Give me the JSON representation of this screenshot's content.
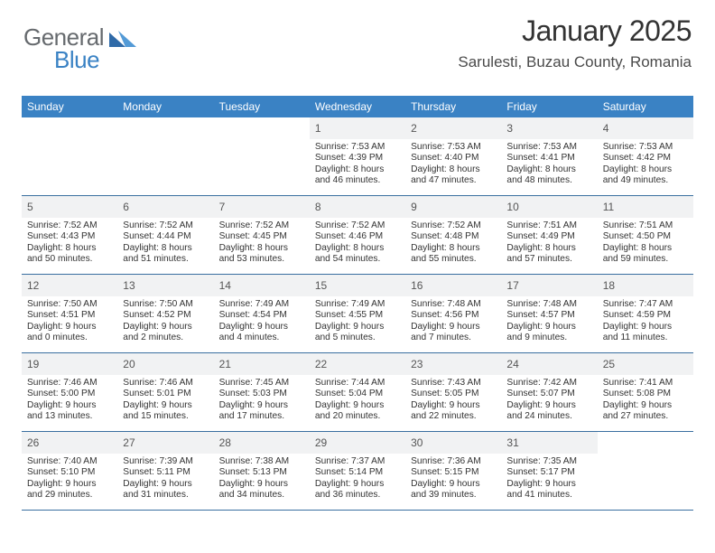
{
  "logo": {
    "text_general": "General",
    "text_blue": "Blue",
    "triangle_color": "#2f6aa8"
  },
  "header": {
    "month_title": "January 2025",
    "location": "Sarulesti, Buzau County, Romania"
  },
  "theme": {
    "header_bg": "#3a82c4",
    "header_text": "#ffffff",
    "daynum_bg": "#f1f2f3",
    "daynum_color": "#555555",
    "cell_text": "#333333",
    "row_border": "#3a6fa0"
  },
  "day_names": [
    "Sunday",
    "Monday",
    "Tuesday",
    "Wednesday",
    "Thursday",
    "Friday",
    "Saturday"
  ],
  "weeks": [
    [
      {
        "empty": true
      },
      {
        "empty": true
      },
      {
        "empty": true
      },
      {
        "n": "1",
        "sr": "7:53 AM",
        "ss": "4:39 PM",
        "dl": "8 hours and 46 minutes."
      },
      {
        "n": "2",
        "sr": "7:53 AM",
        "ss": "4:40 PM",
        "dl": "8 hours and 47 minutes."
      },
      {
        "n": "3",
        "sr": "7:53 AM",
        "ss": "4:41 PM",
        "dl": "8 hours and 48 minutes."
      },
      {
        "n": "4",
        "sr": "7:53 AM",
        "ss": "4:42 PM",
        "dl": "8 hours and 49 minutes."
      }
    ],
    [
      {
        "n": "5",
        "sr": "7:52 AM",
        "ss": "4:43 PM",
        "dl": "8 hours and 50 minutes."
      },
      {
        "n": "6",
        "sr": "7:52 AM",
        "ss": "4:44 PM",
        "dl": "8 hours and 51 minutes."
      },
      {
        "n": "7",
        "sr": "7:52 AM",
        "ss": "4:45 PM",
        "dl": "8 hours and 53 minutes."
      },
      {
        "n": "8",
        "sr": "7:52 AM",
        "ss": "4:46 PM",
        "dl": "8 hours and 54 minutes."
      },
      {
        "n": "9",
        "sr": "7:52 AM",
        "ss": "4:48 PM",
        "dl": "8 hours and 55 minutes."
      },
      {
        "n": "10",
        "sr": "7:51 AM",
        "ss": "4:49 PM",
        "dl": "8 hours and 57 minutes."
      },
      {
        "n": "11",
        "sr": "7:51 AM",
        "ss": "4:50 PM",
        "dl": "8 hours and 59 minutes."
      }
    ],
    [
      {
        "n": "12",
        "sr": "7:50 AM",
        "ss": "4:51 PM",
        "dl": "9 hours and 0 minutes."
      },
      {
        "n": "13",
        "sr": "7:50 AM",
        "ss": "4:52 PM",
        "dl": "9 hours and 2 minutes."
      },
      {
        "n": "14",
        "sr": "7:49 AM",
        "ss": "4:54 PM",
        "dl": "9 hours and 4 minutes."
      },
      {
        "n": "15",
        "sr": "7:49 AM",
        "ss": "4:55 PM",
        "dl": "9 hours and 5 minutes."
      },
      {
        "n": "16",
        "sr": "7:48 AM",
        "ss": "4:56 PM",
        "dl": "9 hours and 7 minutes."
      },
      {
        "n": "17",
        "sr": "7:48 AM",
        "ss": "4:57 PM",
        "dl": "9 hours and 9 minutes."
      },
      {
        "n": "18",
        "sr": "7:47 AM",
        "ss": "4:59 PM",
        "dl": "9 hours and 11 minutes."
      }
    ],
    [
      {
        "n": "19",
        "sr": "7:46 AM",
        "ss": "5:00 PM",
        "dl": "9 hours and 13 minutes."
      },
      {
        "n": "20",
        "sr": "7:46 AM",
        "ss": "5:01 PM",
        "dl": "9 hours and 15 minutes."
      },
      {
        "n": "21",
        "sr": "7:45 AM",
        "ss": "5:03 PM",
        "dl": "9 hours and 17 minutes."
      },
      {
        "n": "22",
        "sr": "7:44 AM",
        "ss": "5:04 PM",
        "dl": "9 hours and 20 minutes."
      },
      {
        "n": "23",
        "sr": "7:43 AM",
        "ss": "5:05 PM",
        "dl": "9 hours and 22 minutes."
      },
      {
        "n": "24",
        "sr": "7:42 AM",
        "ss": "5:07 PM",
        "dl": "9 hours and 24 minutes."
      },
      {
        "n": "25",
        "sr": "7:41 AM",
        "ss": "5:08 PM",
        "dl": "9 hours and 27 minutes."
      }
    ],
    [
      {
        "n": "26",
        "sr": "7:40 AM",
        "ss": "5:10 PM",
        "dl": "9 hours and 29 minutes."
      },
      {
        "n": "27",
        "sr": "7:39 AM",
        "ss": "5:11 PM",
        "dl": "9 hours and 31 minutes."
      },
      {
        "n": "28",
        "sr": "7:38 AM",
        "ss": "5:13 PM",
        "dl": "9 hours and 34 minutes."
      },
      {
        "n": "29",
        "sr": "7:37 AM",
        "ss": "5:14 PM",
        "dl": "9 hours and 36 minutes."
      },
      {
        "n": "30",
        "sr": "7:36 AM",
        "ss": "5:15 PM",
        "dl": "9 hours and 39 minutes."
      },
      {
        "n": "31",
        "sr": "7:35 AM",
        "ss": "5:17 PM",
        "dl": "9 hours and 41 minutes."
      },
      {
        "empty": true
      }
    ]
  ],
  "labels": {
    "sunrise": "Sunrise:",
    "sunset": "Sunset:",
    "daylight": "Daylight:"
  }
}
